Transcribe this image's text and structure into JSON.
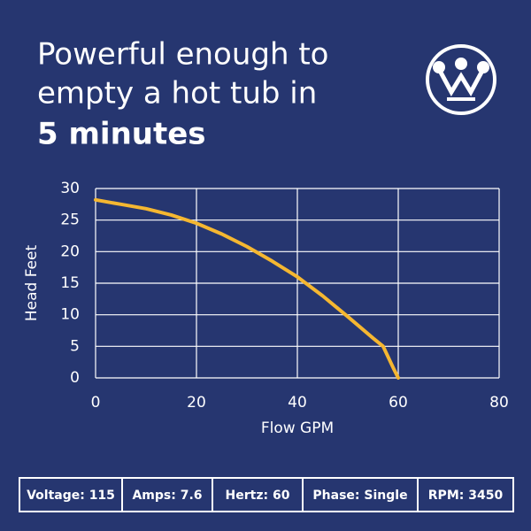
{
  "header": {
    "title_lines": [
      "Powerful enough to",
      "empty a hot tub in"
    ],
    "highlight": "5 minutes"
  },
  "chart_data": {
    "type": "line",
    "x_label": "Flow GPM",
    "y_label": "Head Feet",
    "series": [
      {
        "color": "#f5b731",
        "x": [
          0,
          5,
          10,
          15,
          20,
          25,
          30,
          35,
          40,
          45,
          50,
          55,
          57,
          58,
          59,
          60
        ],
        "values": [
          28.2,
          27.5,
          26.8,
          25.8,
          24.5,
          22.8,
          20.8,
          18.5,
          16,
          13,
          9.7,
          6.3,
          5,
          3.3,
          1.6,
          0
        ]
      }
    ],
    "xlim": [
      0,
      80
    ],
    "xticks": [
      0,
      20,
      40,
      60,
      80
    ],
    "ylim": [
      0,
      30
    ],
    "yticks": [
      0,
      5,
      10,
      15,
      20,
      25,
      30
    ],
    "grid": true
  },
  "specs": [
    "Voltage: 115",
    "Amps: 7.6",
    "Hertz: 60",
    "Phase: Single",
    "RPM: 3450"
  ]
}
